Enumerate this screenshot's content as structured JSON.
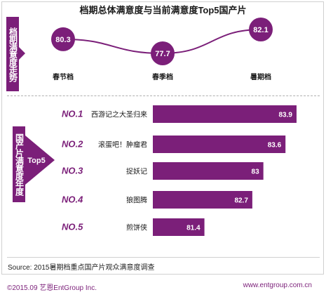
{
  "title": "档期总体满意度与当前满意度Top5国产片",
  "colors": {
    "primary": "#7b1f79",
    "bar": "#7b1f79",
    "rank_text": "#7b1f79",
    "line": "#7b1f79"
  },
  "chart_data": [
    {
      "type": "line",
      "side_label": "档期满意度走势",
      "categories": [
        "春节档",
        "春季档",
        "暑期档"
      ],
      "values": [
        80.3,
        77.7,
        82.1
      ],
      "grid": false
    },
    {
      "type": "bar",
      "orientation": "horizontal",
      "side_label": "国产片满意度年度",
      "tag": "Top5",
      "ranks": [
        "NO.1",
        "NO.2",
        "NO.3",
        "NO.4",
        "NO.5"
      ],
      "categories": [
        "西游记之大圣归来",
        "滚蛋吧！肿瘤君",
        "捉妖记",
        "狼图腾",
        "煎饼侠"
      ],
      "values": [
        83.9,
        83.6,
        83.0,
        82.7,
        81.4
      ],
      "grid": false
    }
  ],
  "source": "Source: 2015暑期档重点国产片观众满意度调查",
  "footer": {
    "left": "©2015.09  艺恩EntGroup Inc.",
    "right": "www.entgroup.com.cn"
  }
}
